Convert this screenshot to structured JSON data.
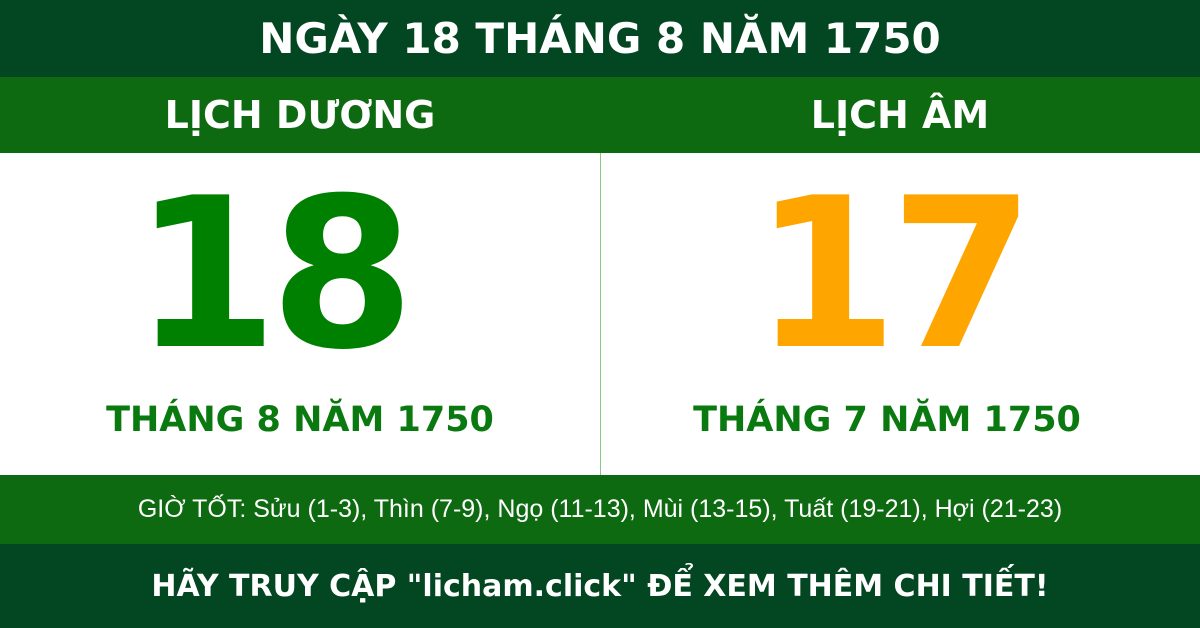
{
  "title": "NGÀY 18 THÁNG 8 NĂM 1750",
  "solar": {
    "label": "LỊCH DƯƠNG",
    "day": "18",
    "month_year": "THÁNG 8 NĂM 1750",
    "color": "#008000"
  },
  "lunar": {
    "label": "LỊCH ÂM",
    "day": "17",
    "month_year": "THÁNG 7 NĂM 1750",
    "color": "#ffa500"
  },
  "good_hours": "GIỜ TỐT: Sửu (1-3), Thìn (7-9), Ngọ (11-13), Mùi (13-15), Tuất (19-21), Hợi (21-23)",
  "footer": "HÃY TRUY CẬP \"licham.click\" ĐỂ XEM THÊM CHI TIẾT!"
}
